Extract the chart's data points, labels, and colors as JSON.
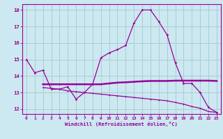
{
  "xlabel": "Windchill (Refroidissement éolien,°C)",
  "background_color": "#cce8f0",
  "grid_color": "#aaccd4",
  "line_color": "#990099",
  "x_values": [
    0,
    1,
    2,
    3,
    4,
    5,
    6,
    7,
    8,
    9,
    10,
    11,
    12,
    13,
    14,
    15,
    16,
    17,
    18,
    19,
    20,
    21,
    22,
    23
  ],
  "line1_y": [
    15.0,
    14.2,
    14.35,
    13.2,
    13.2,
    13.35,
    12.6,
    13.0,
    13.5,
    15.1,
    15.4,
    15.6,
    15.85,
    17.2,
    18.0,
    18.0,
    17.3,
    16.5,
    14.8,
    13.55,
    13.55,
    13.0,
    12.1,
    11.8
  ],
  "line2_start": 2,
  "line2_y": [
    13.5,
    13.5,
    13.5,
    13.5,
    13.5,
    13.5,
    13.5,
    13.5,
    13.55,
    13.6,
    13.62,
    13.65,
    13.68,
    13.7,
    13.7,
    13.7,
    13.72,
    13.72,
    13.72,
    13.72,
    13.72,
    13.7
  ],
  "line3_start": 2,
  "line3_y": [
    13.3,
    13.25,
    13.2,
    13.1,
    13.05,
    13.0,
    12.95,
    12.9,
    12.85,
    12.8,
    12.75,
    12.7,
    12.65,
    12.6,
    12.55,
    12.5,
    12.4,
    12.3,
    12.15,
    12.05,
    11.85,
    11.8
  ],
  "ylim": [
    11.7,
    18.35
  ],
  "xlim": [
    -0.5,
    23.5
  ],
  "yticks": [
    12,
    13,
    14,
    15,
    16,
    17,
    18
  ],
  "xticks": [
    0,
    1,
    2,
    3,
    4,
    5,
    6,
    7,
    8,
    9,
    10,
    11,
    12,
    13,
    14,
    15,
    16,
    17,
    18,
    19,
    20,
    21,
    22,
    23
  ]
}
